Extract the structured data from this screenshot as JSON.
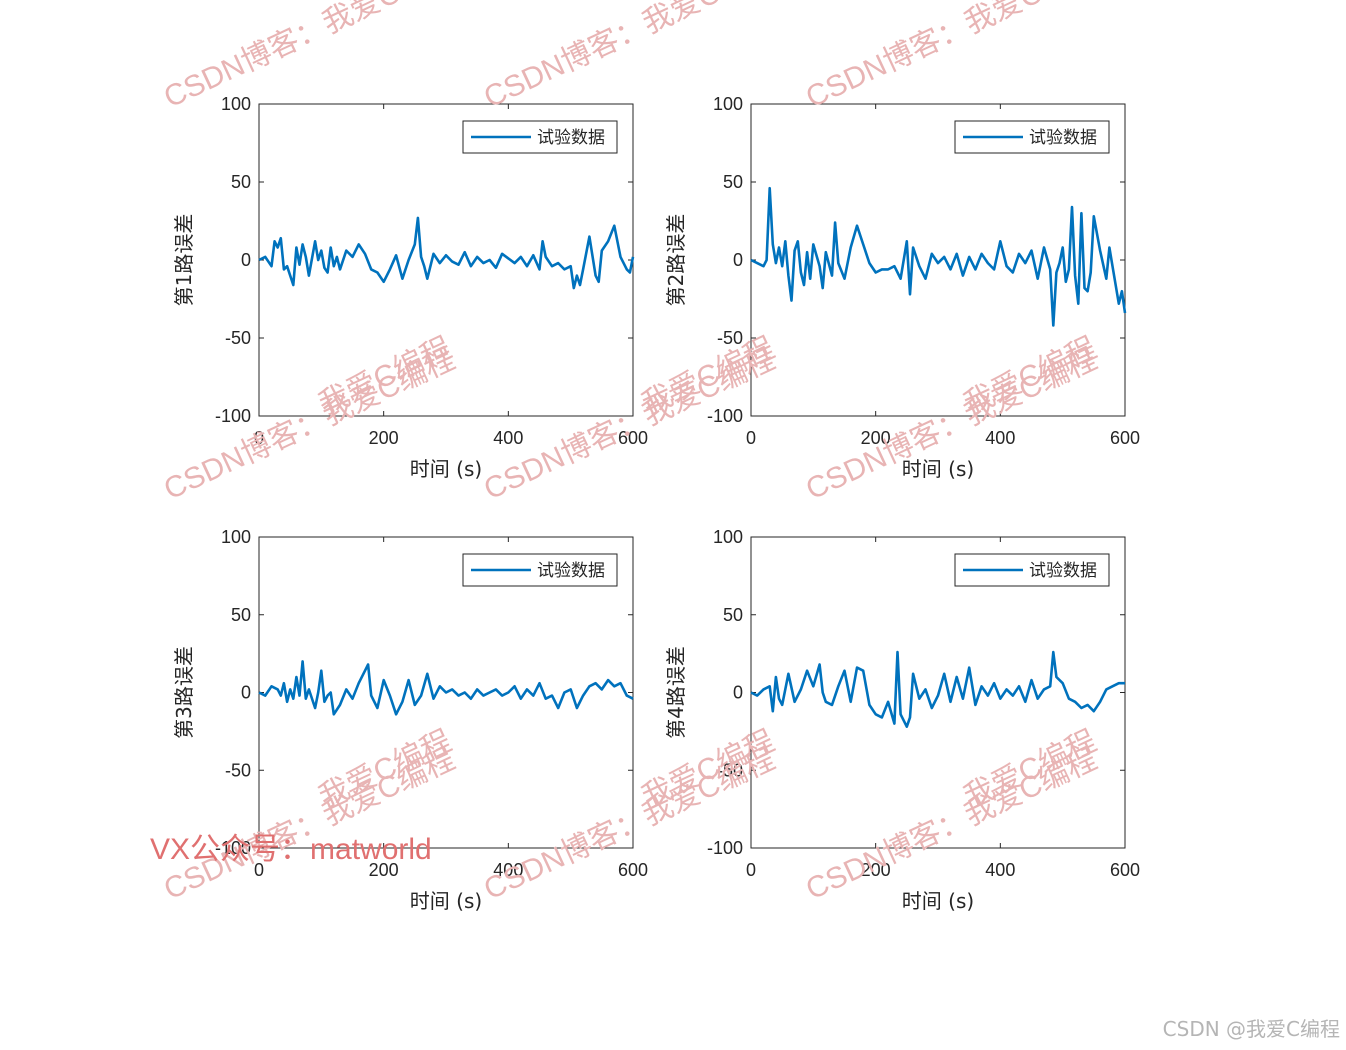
{
  "chart_data": [
    {
      "type": "line",
      "ylabel": "第1路误差",
      "xlabel": "时间 (s)",
      "xlim": [
        0,
        600
      ],
      "ylim": [
        -100,
        100
      ],
      "xticks": [
        0,
        200,
        400,
        600
      ],
      "yticks": [
        -100,
        -50,
        0,
        50,
        100
      ],
      "legend": "top-right",
      "series": [
        {
          "name": "试验数据",
          "color": "#0072BD",
          "x": [
            0,
            10,
            20,
            25,
            30,
            35,
            40,
            45,
            50,
            55,
            60,
            65,
            70,
            75,
            80,
            90,
            95,
            100,
            105,
            110,
            115,
            120,
            125,
            130,
            140,
            150,
            160,
            170,
            180,
            190,
            200,
            210,
            220,
            230,
            240,
            250,
            255,
            260,
            265,
            270,
            280,
            290,
            300,
            310,
            320,
            330,
            340,
            350,
            360,
            370,
            380,
            390,
            400,
            410,
            420,
            430,
            440,
            450,
            455,
            460,
            470,
            480,
            490,
            500,
            505,
            510,
            515,
            520,
            530,
            540,
            545,
            550,
            560,
            570,
            580,
            590,
            595,
            600
          ],
          "y": [
            0,
            2,
            -4,
            12,
            8,
            14,
            -6,
            -4,
            -10,
            -16,
            8,
            -3,
            10,
            2,
            -10,
            12,
            0,
            6,
            -5,
            -8,
            8,
            -4,
            2,
            -6,
            6,
            2,
            10,
            4,
            -6,
            -8,
            -14,
            -6,
            3,
            -12,
            0,
            10,
            27,
            2,
            -4,
            -12,
            4,
            -2,
            3,
            -1,
            -3,
            5,
            -4,
            2,
            -2,
            0,
            -5,
            4,
            1,
            -2,
            2,
            -4,
            3,
            -6,
            12,
            2,
            -4,
            -2,
            -6,
            -4,
            -18,
            -10,
            -16,
            -6,
            15,
            -10,
            -14,
            6,
            12,
            22,
            2,
            -6,
            -8,
            2
          ]
        }
      ]
    },
    {
      "type": "line",
      "ylabel": "第2路误差",
      "xlabel": "时间 (s)",
      "xlim": [
        0,
        600
      ],
      "ylim": [
        -100,
        100
      ],
      "xticks": [
        0,
        200,
        400,
        600
      ],
      "yticks": [
        -100,
        -50,
        0,
        50,
        100
      ],
      "legend": "top-right",
      "series": [
        {
          "name": "试验数据",
          "color": "#0072BD",
          "x": [
            0,
            10,
            20,
            25,
            30,
            35,
            40,
            45,
            50,
            55,
            60,
            65,
            70,
            75,
            80,
            85,
            90,
            95,
            100,
            110,
            115,
            120,
            130,
            135,
            140,
            150,
            160,
            170,
            180,
            190,
            200,
            210,
            220,
            230,
            240,
            250,
            255,
            260,
            270,
            280,
            290,
            300,
            310,
            320,
            330,
            340,
            350,
            360,
            370,
            380,
            390,
            400,
            410,
            420,
            430,
            440,
            450,
            460,
            470,
            480,
            485,
            490,
            495,
            500,
            505,
            510,
            515,
            520,
            525,
            530,
            535,
            540,
            545,
            550,
            560,
            570,
            575,
            580,
            590,
            595,
            600
          ],
          "y": [
            0,
            -2,
            -4,
            0,
            46,
            10,
            -2,
            8,
            -4,
            12,
            -10,
            -26,
            6,
            12,
            -8,
            -16,
            5,
            -12,
            10,
            -4,
            -18,
            5,
            -10,
            24,
            -2,
            -12,
            8,
            22,
            10,
            -2,
            -8,
            -6,
            -6,
            -4,
            -12,
            12,
            -22,
            8,
            -4,
            -12,
            4,
            -2,
            2,
            -6,
            4,
            -10,
            2,
            -6,
            4,
            -2,
            -6,
            12,
            -4,
            -8,
            4,
            -2,
            6,
            -12,
            8,
            -6,
            -42,
            -8,
            -2,
            8,
            -14,
            -6,
            34,
            -10,
            -28,
            30,
            -18,
            -20,
            -8,
            28,
            6,
            -12,
            8,
            -4,
            -28,
            -20,
            -34
          ]
        }
      ]
    },
    {
      "type": "line",
      "ylabel": "第3路误差",
      "xlabel": "时间 (s)",
      "xlim": [
        0,
        600
      ],
      "ylim": [
        -100,
        100
      ],
      "xticks": [
        0,
        200,
        400,
        600
      ],
      "yticks": [
        -100,
        -50,
        0,
        50,
        100
      ],
      "legend": "top-right",
      "series": [
        {
          "name": "试验数据",
          "color": "#0072BD",
          "x": [
            0,
            10,
            20,
            30,
            35,
            40,
            45,
            50,
            55,
            60,
            65,
            70,
            75,
            80,
            90,
            95,
            100,
            105,
            110,
            115,
            120,
            130,
            140,
            150,
            160,
            170,
            175,
            180,
            190,
            200,
            210,
            220,
            230,
            240,
            250,
            260,
            270,
            280,
            290,
            300,
            310,
            320,
            330,
            340,
            350,
            360,
            370,
            380,
            390,
            400,
            410,
            420,
            430,
            440,
            450,
            460,
            470,
            480,
            490,
            500,
            510,
            520,
            530,
            540,
            550,
            560,
            570,
            580,
            590,
            600
          ],
          "y": [
            0,
            -2,
            4,
            2,
            -2,
            6,
            -6,
            2,
            -4,
            10,
            -2,
            20,
            -4,
            2,
            -10,
            0,
            14,
            -6,
            -2,
            0,
            -14,
            -8,
            2,
            -4,
            6,
            14,
            18,
            -2,
            -10,
            8,
            -2,
            -14,
            -6,
            8,
            -8,
            -2,
            12,
            -4,
            4,
            0,
            2,
            -2,
            0,
            -4,
            2,
            -2,
            0,
            2,
            -2,
            0,
            4,
            -4,
            2,
            -2,
            6,
            -4,
            -2,
            -10,
            0,
            2,
            -10,
            -2,
            4,
            6,
            2,
            8,
            4,
            6,
            -2,
            -4
          ]
        }
      ]
    },
    {
      "type": "line",
      "ylabel": "第4路误差",
      "xlabel": "时间 (s)",
      "xlim": [
        0,
        600
      ],
      "ylim": [
        -100,
        100
      ],
      "xticks": [
        0,
        200,
        400,
        600
      ],
      "yticks": [
        -100,
        -50,
        0,
        50,
        100
      ],
      "legend": "top-right",
      "series": [
        {
          "name": "试验数据",
          "color": "#0072BD",
          "x": [
            0,
            10,
            20,
            30,
            35,
            40,
            45,
            50,
            60,
            70,
            80,
            90,
            100,
            110,
            115,
            120,
            130,
            140,
            150,
            160,
            170,
            180,
            190,
            200,
            210,
            220,
            230,
            235,
            240,
            250,
            255,
            260,
            270,
            280,
            290,
            300,
            310,
            320,
            330,
            340,
            350,
            360,
            370,
            380,
            390,
            400,
            410,
            420,
            430,
            440,
            450,
            460,
            470,
            480,
            485,
            490,
            500,
            510,
            520,
            530,
            540,
            550,
            560,
            570,
            580,
            590,
            600
          ],
          "y": [
            0,
            -2,
            2,
            4,
            -12,
            10,
            -4,
            -8,
            12,
            -6,
            2,
            14,
            4,
            18,
            0,
            -6,
            -8,
            4,
            14,
            -6,
            16,
            14,
            -8,
            -14,
            -16,
            -6,
            -20,
            26,
            -14,
            -22,
            -16,
            12,
            -4,
            2,
            -10,
            -2,
            12,
            -6,
            10,
            -4,
            16,
            -8,
            4,
            -2,
            6,
            -4,
            2,
            -2,
            4,
            -6,
            8,
            -4,
            2,
            4,
            26,
            10,
            6,
            -4,
            -6,
            -10,
            -8,
            -12,
            -6,
            2,
            4,
            6,
            6
          ]
        }
      ]
    }
  ],
  "watermarks": {
    "csdn": "CSDN博客：我爱C编程",
    "blog_short": "CSDN博客：",
    "site": "我爱C编程",
    "vx": "VX公众号：matworld",
    "credit": "CSDN @我爱C编程"
  }
}
